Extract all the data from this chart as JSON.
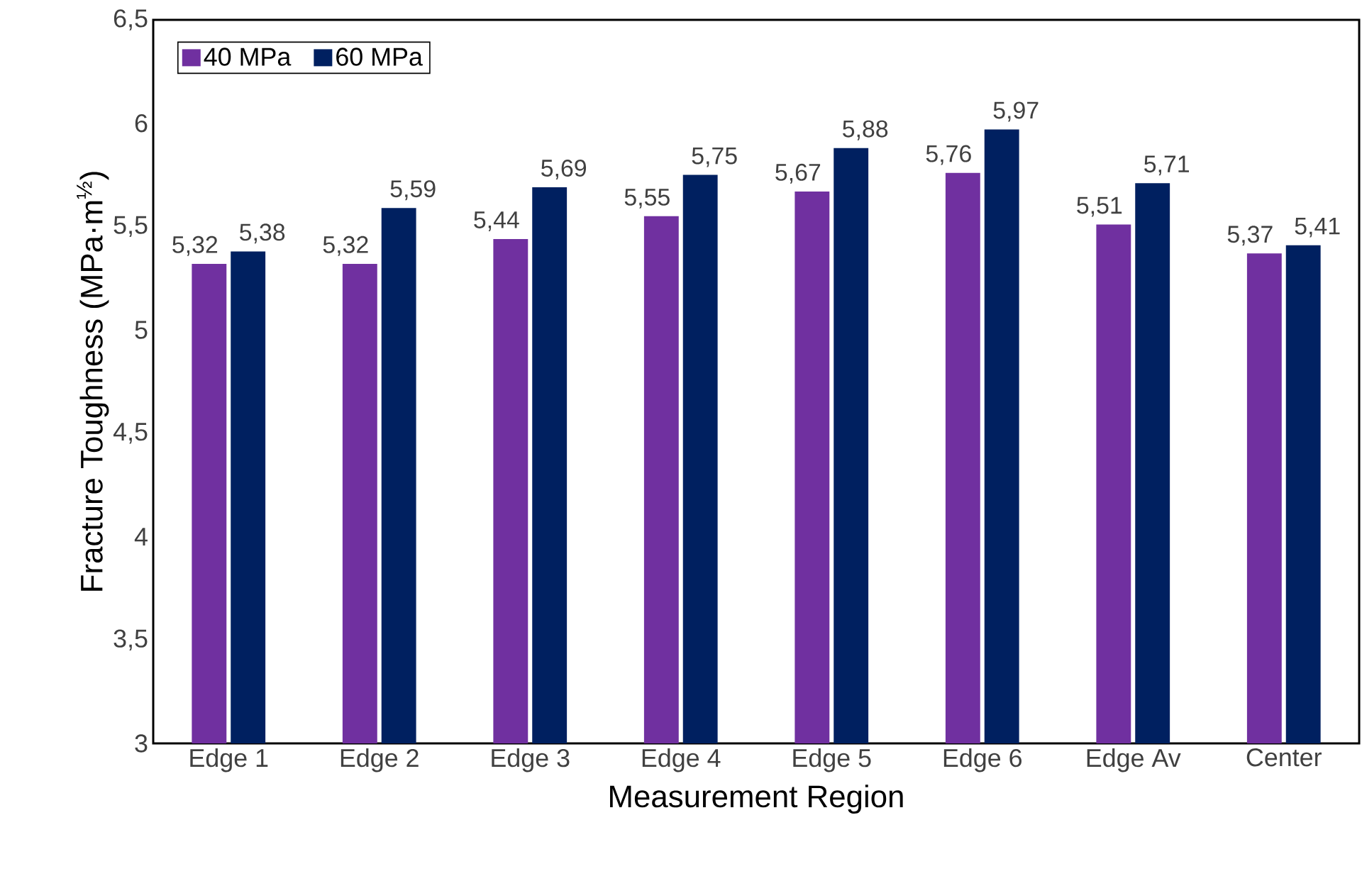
{
  "chart_data": {
    "type": "bar",
    "xlabel": "Measurement Region",
    "ylabel": "Fracture Toughness (MPa·m$^{½}$)",
    "categories": [
      "Edge 1",
      "Edge 2",
      "Edge 3",
      "Edge 4",
      "Edge 5",
      "Edge 6",
      "Edge Av",
      "Center"
    ],
    "series": [
      {
        "name": "40 MPa",
        "color": "#7030a0",
        "values": [
          5.32,
          5.32,
          5.44,
          5.55,
          5.67,
          5.76,
          5.51,
          5.37
        ],
        "value_labels": [
          "5,32",
          "5,32",
          "5,44",
          "5,55",
          "5,67",
          "5,76",
          "5,51",
          "5,37"
        ]
      },
      {
        "name": "60 MPa",
        "color": "#002060",
        "values": [
          5.38,
          5.59,
          5.69,
          5.75,
          5.88,
          5.97,
          5.71,
          5.41
        ],
        "value_labels": [
          "5,38",
          "5,59",
          "5,69",
          "5,75",
          "5,88",
          "5,97",
          "5,71",
          "5,41"
        ]
      }
    ],
    "ylim": [
      3,
      6.5
    ],
    "yticks": [
      3,
      {
        "value": 3.5,
        "label": "3,5"
      },
      4,
      {
        "value": 4.5,
        "label": "4,5"
      },
      5,
      {
        "value": 5.5,
        "label": "5,5"
      },
      6,
      {
        "value": 6.5,
        "label": "6,5"
      }
    ],
    "grid": false,
    "legend": "top left"
  }
}
